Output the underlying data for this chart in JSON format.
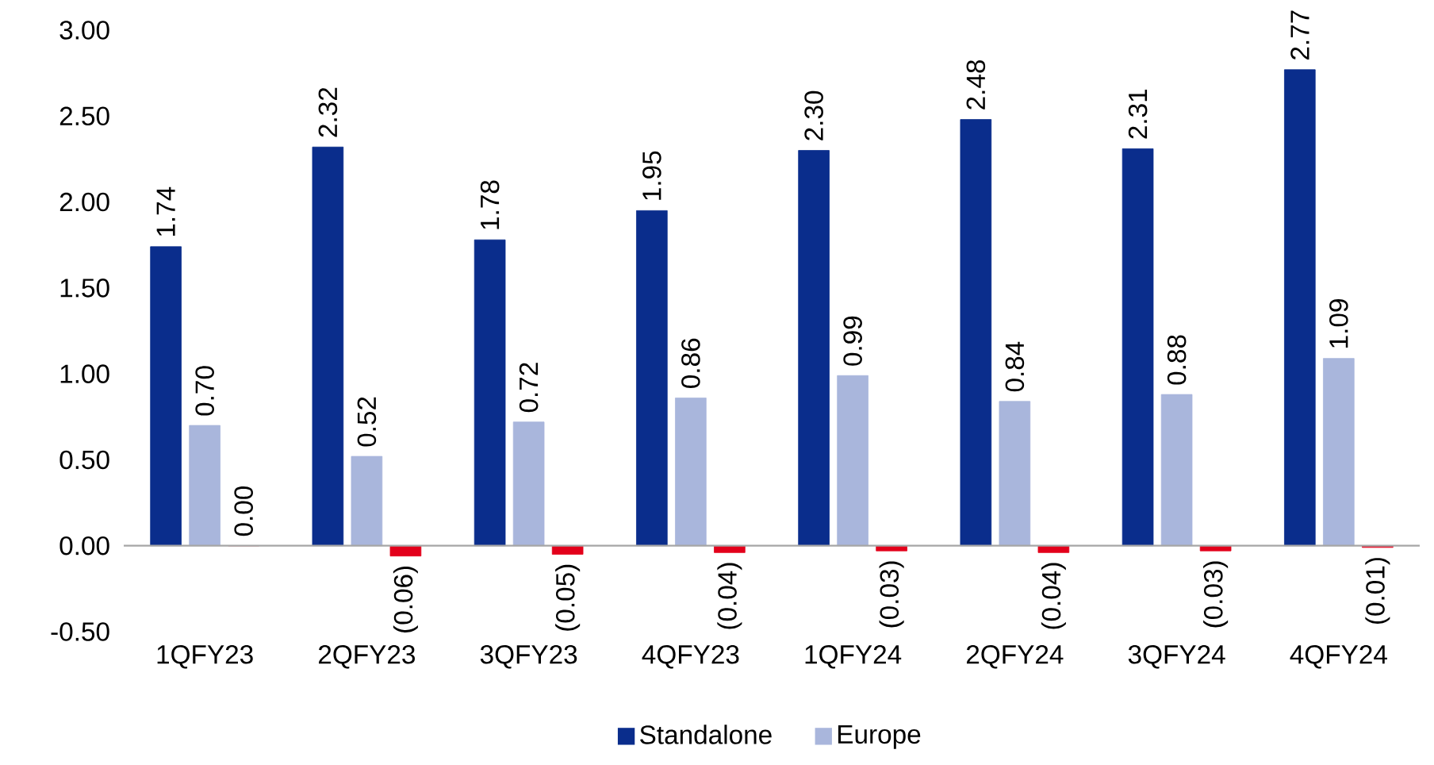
{
  "chart_data": {
    "type": "bar",
    "categories": [
      "1QFY23",
      "2QFY23",
      "3QFY23",
      "4QFY23",
      "1QFY24",
      "2QFY24",
      "3QFY24",
      "4QFY24"
    ],
    "series": [
      {
        "name": "Standalone",
        "color": "#0a2d8c",
        "values": [
          1.74,
          2.32,
          1.78,
          1.95,
          2.3,
          2.48,
          2.31,
          2.77
        ],
        "value_labels": [
          "1.74",
          "2.32",
          "1.78",
          "1.95",
          "2.30",
          "2.48",
          "2.31",
          "2.77"
        ]
      },
      {
        "name": "Europe",
        "color": "#a9b6dc",
        "values": [
          0.7,
          0.52,
          0.72,
          0.86,
          0.99,
          0.84,
          0.88,
          1.09
        ],
        "value_labels": [
          "0.70",
          "0.52",
          "0.72",
          "0.86",
          "0.99",
          "0.84",
          "0.88",
          "1.09"
        ]
      },
      {
        "color": "#e3001b",
        "values": [
          0.0,
          -0.06,
          -0.05,
          -0.04,
          -0.03,
          -0.04,
          -0.03,
          -0.01
        ],
        "value_labels": [
          "0.00",
          "(0.06)",
          "(0.05)",
          "(0.04)",
          "(0.03)",
          "(0.04)",
          "(0.03)",
          "(0.01)"
        ]
      }
    ],
    "ylim": [
      -0.5,
      3.0
    ],
    "yticks": [
      {
        "value": -0.5,
        "label": "-0.50"
      },
      {
        "value": 0,
        "label": "0.00"
      },
      {
        "value": 0.5,
        "label": "0.50"
      },
      {
        "value": 1.0,
        "label": "1.00"
      },
      {
        "value": 1.5,
        "label": "1.50"
      },
      {
        "value": 2.0,
        "label": "2.00"
      },
      {
        "value": 2.5,
        "label": "2.50"
      },
      {
        "value": 3.0,
        "label": "3.00"
      }
    ],
    "ref_lines": [
      {
        "axis": "y",
        "value": 0,
        "color": "#a6a6a6"
      }
    ],
    "grid": false,
    "legend": "bottom"
  }
}
